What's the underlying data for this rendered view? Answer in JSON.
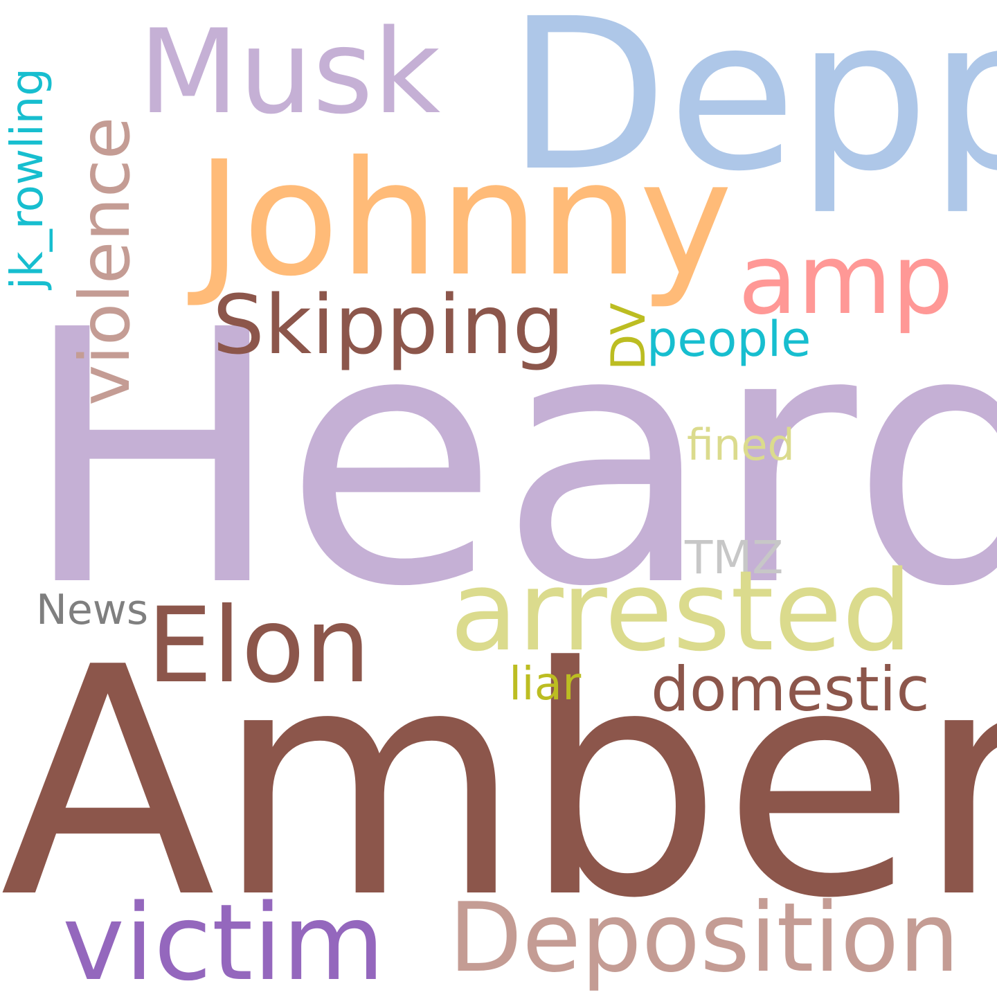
{
  "background": "#ffffff",
  "words": {
    "heard": {
      "text": "Heard",
      "color": "#c5b0d5"
    },
    "amber": {
      "text": "Amber",
      "color": "#8c564b"
    },
    "depp": {
      "text": "Depp",
      "color": "#aec7e8"
    },
    "johnny": {
      "text": "Johnny",
      "color": "#ffbb78"
    },
    "musk": {
      "text": "Musk",
      "color": "#c5b0d5"
    },
    "violence": {
      "text": "violence",
      "color": "#c49c94"
    },
    "jk_rowling": {
      "text": "jk_rowling",
      "color": "#17becf"
    },
    "amp": {
      "text": "amp",
      "color": "#ff9896"
    },
    "skipping": {
      "text": "Skipping",
      "color": "#8c564b"
    },
    "dv": {
      "text": "DV",
      "color": "#bcbd22"
    },
    "people": {
      "text": "people",
      "color": "#17becf"
    },
    "fined": {
      "text": "fined",
      "color": "#dbdb8d"
    },
    "tmz": {
      "text": "TMZ",
      "color": "#c7c7c7"
    },
    "arrested": {
      "text": "arrested",
      "color": "#dbdb8d"
    },
    "news": {
      "text": "News",
      "color": "#7f7f7f"
    },
    "elon": {
      "text": "Elon",
      "color": "#8c564b"
    },
    "domestic": {
      "text": "domestic",
      "color": "#8c564b"
    },
    "liar": {
      "text": "liar",
      "color": "#bcbd22"
    },
    "victim": {
      "text": "victim",
      "color": "#9467bd"
    },
    "deposition": {
      "text": "Deposition",
      "color": "#c49c94"
    }
  }
}
